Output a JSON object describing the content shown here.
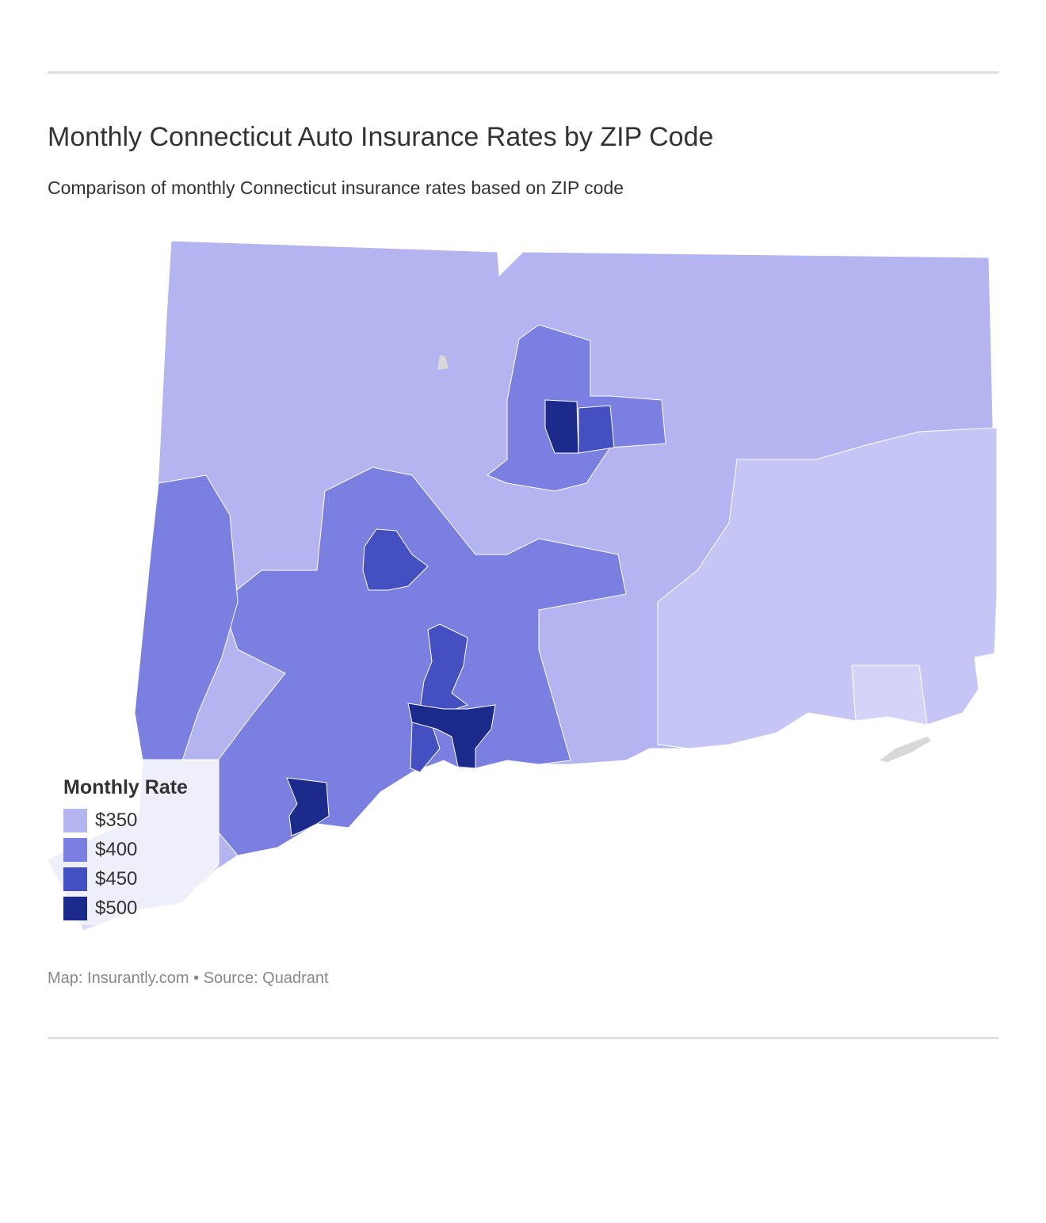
{
  "header": {
    "title": "Monthly Connecticut Auto Insurance Rates by ZIP Code",
    "subtitle": "Comparison of monthly Connecticut insurance rates based on ZIP code"
  },
  "legend": {
    "title": "Monthly Rate",
    "items": [
      {
        "label": "$350",
        "color": "#b4b4f0"
      },
      {
        "label": "$400",
        "color": "#7b7fe0"
      },
      {
        "label": "$450",
        "color": "#4450c0"
      },
      {
        "label": "$500",
        "color": "#1c2a8c"
      }
    ]
  },
  "footer": {
    "source": "Map: Insurantly.com • Source: Quadrant"
  }
}
